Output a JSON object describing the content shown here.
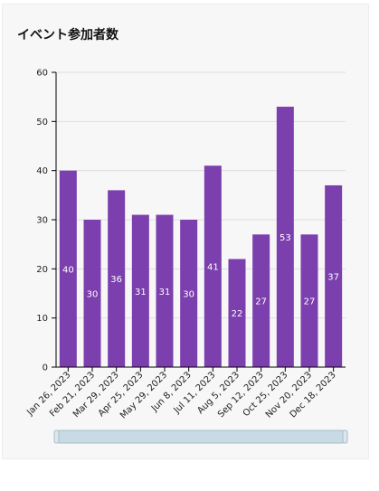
{
  "title": "イベント参加者数",
  "colors": {
    "bar": "#7b3fae",
    "grid": "#dddddd",
    "axis": "#000000",
    "scrollbar_fill": "#c8dbe5",
    "scrollbar_stroke": "#a9bcc7"
  },
  "chart_data": {
    "type": "bar",
    "title": "イベント参加者数",
    "categories": [
      "Jan 26, 2023",
      "Feb 21, 2023",
      "Mar 29, 2023",
      "Apr 25, 2023",
      "May 29, 2023",
      "Jun 8, 2023",
      "Jul 11, 2023",
      "Aug 5, 2023",
      "Sep 12, 2023",
      "Oct 25, 2023",
      "Nov 20, 2023",
      "Dec 18, 2023"
    ],
    "values": [
      40,
      30,
      36,
      31,
      31,
      30,
      41,
      22,
      27,
      53,
      27,
      37
    ],
    "ylim": [
      0,
      60
    ],
    "yticks": [
      0,
      10,
      20,
      30,
      40,
      50,
      60
    ],
    "grid": true,
    "data_labels": true,
    "scrollbar": true
  }
}
